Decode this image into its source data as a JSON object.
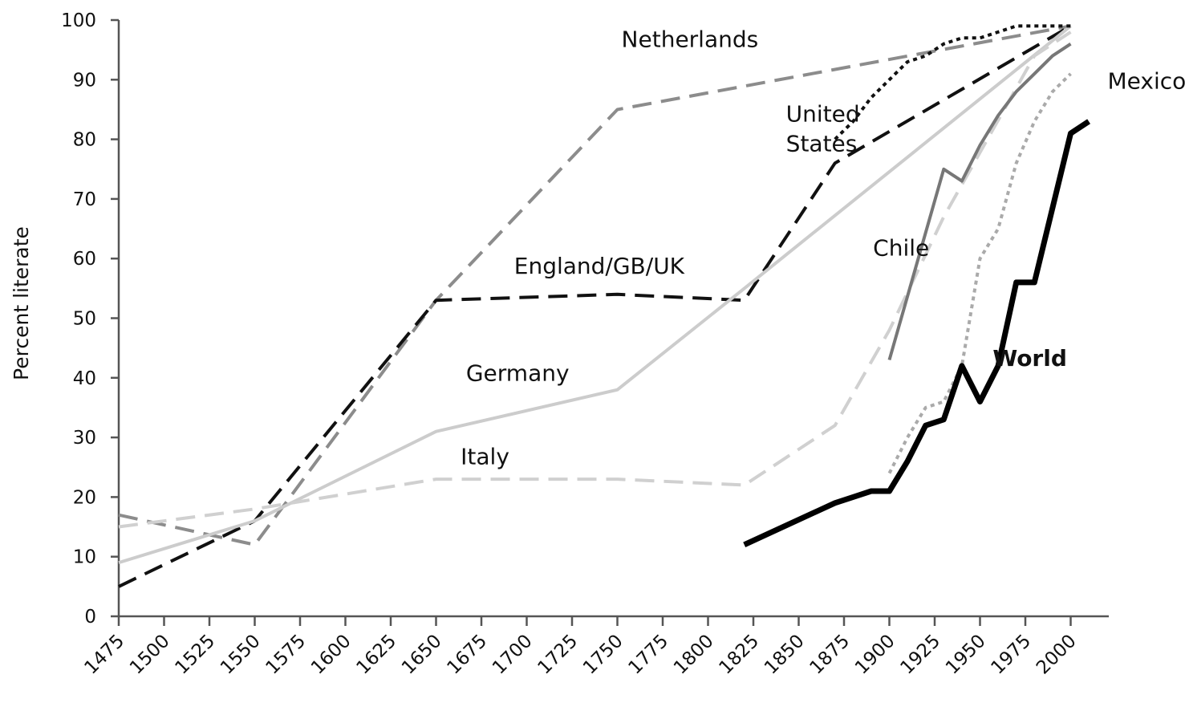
{
  "chart_data": {
    "type": "line",
    "title": "",
    "xlabel": "",
    "ylabel": "Percent literate",
    "xlim": [
      1475,
      2025
    ],
    "ylim": [
      0,
      100
    ],
    "x_ticks": [
      1475,
      1500,
      1525,
      1550,
      1575,
      1600,
      1625,
      1650,
      1675,
      1700,
      1725,
      1750,
      1775,
      1800,
      1825,
      1850,
      1875,
      1900,
      1925,
      1950,
      1975,
      2000
    ],
    "y_ticks": [
      0,
      10,
      20,
      30,
      40,
      50,
      60,
      70,
      80,
      90,
      100
    ],
    "grid": false,
    "legend": "none",
    "series": [
      {
        "name": "Netherlands",
        "color": "#8c8c8c",
        "dash": "long",
        "width": 4,
        "points": [
          [
            1475,
            17
          ],
          [
            1550,
            12
          ],
          [
            1650,
            53
          ],
          [
            1750,
            85
          ],
          [
            2000,
            99
          ]
        ]
      },
      {
        "name": "England/GB/UK",
        "color": "#111111",
        "dash": "long",
        "width": 4,
        "points": [
          [
            1475,
            5
          ],
          [
            1550,
            16
          ],
          [
            1650,
            53
          ],
          [
            1750,
            54
          ],
          [
            1820,
            53
          ],
          [
            1870,
            76
          ],
          [
            2000,
            99
          ]
        ]
      },
      {
        "name": "Germany",
        "color": "#cccccc",
        "dash": "solid",
        "width": 4,
        "points": [
          [
            1475,
            9
          ],
          [
            1550,
            16
          ],
          [
            1650,
            31
          ],
          [
            1750,
            38
          ],
          [
            1820,
            55
          ],
          [
            2000,
            99
          ]
        ]
      },
      {
        "name": "Italy",
        "color": "#d0d0d0",
        "dash": "long",
        "width": 4,
        "points": [
          [
            1475,
            15
          ],
          [
            1550,
            18
          ],
          [
            1650,
            23
          ],
          [
            1750,
            23
          ],
          [
            1820,
            22
          ],
          [
            1870,
            32
          ],
          [
            1900,
            48
          ],
          [
            1930,
            67
          ],
          [
            1980,
            94
          ],
          [
            2000,
            98
          ]
        ]
      },
      {
        "name": "United States",
        "color": "#111111",
        "dash": "dotted",
        "width": 4,
        "points": [
          [
            1870,
            80
          ],
          [
            1880,
            83
          ],
          [
            1890,
            87
          ],
          [
            1900,
            90
          ],
          [
            1910,
            93
          ],
          [
            1920,
            94
          ],
          [
            1930,
            96
          ],
          [
            1940,
            97
          ],
          [
            1950,
            97
          ],
          [
            1960,
            98
          ],
          [
            1970,
            99
          ],
          [
            1980,
            99
          ],
          [
            1990,
            99
          ],
          [
            2000,
            99
          ]
        ]
      },
      {
        "name": "Chile",
        "color": "#777777",
        "dash": "solid",
        "width": 4,
        "points": [
          [
            1900,
            43
          ],
          [
            1930,
            75
          ],
          [
            1940,
            73
          ],
          [
            1950,
            79
          ],
          [
            1960,
            84
          ],
          [
            1970,
            88
          ],
          [
            1980,
            91
          ],
          [
            1990,
            94
          ],
          [
            2000,
            96
          ]
        ]
      },
      {
        "name": "Mexico",
        "color": "#aaaaaa",
        "dash": "dotted",
        "width": 4,
        "points": [
          [
            1900,
            24
          ],
          [
            1910,
            30
          ],
          [
            1920,
            35
          ],
          [
            1930,
            36
          ],
          [
            1940,
            42
          ],
          [
            1950,
            60
          ],
          [
            1960,
            65
          ],
          [
            1970,
            76
          ],
          [
            1980,
            83
          ],
          [
            1990,
            88
          ],
          [
            2000,
            91
          ]
        ]
      },
      {
        "name": "World",
        "color": "#000000",
        "dash": "solid",
        "width": 7,
        "points": [
          [
            1820,
            12
          ],
          [
            1870,
            19
          ],
          [
            1880,
            20
          ],
          [
            1890,
            21
          ],
          [
            1900,
            21
          ],
          [
            1910,
            26
          ],
          [
            1920,
            32
          ],
          [
            1930,
            33
          ],
          [
            1940,
            42
          ],
          [
            1950,
            36
          ],
          [
            1960,
            42
          ],
          [
            1970,
            56
          ],
          [
            1980,
            56
          ],
          [
            2000,
            81
          ],
          [
            2010,
            83
          ]
        ]
      }
    ],
    "labels": [
      {
        "text": "Netherlands",
        "x": 1790,
        "y": 95.5,
        "anchor": "middle",
        "bold": false
      },
      {
        "text": "United",
        "x": 1843,
        "y": 83,
        "anchor": "start",
        "bold": false
      },
      {
        "text": "States",
        "x": 1843,
        "y": 78,
        "anchor": "start",
        "bold": false
      },
      {
        "text": "England/GB/UK",
        "x": 1740,
        "y": 57.5,
        "anchor": "middle",
        "bold": false
      },
      {
        "text": "Germany",
        "x": 1695,
        "y": 39.5,
        "anchor": "middle",
        "bold": false
      },
      {
        "text": "Italy",
        "x": 1677,
        "y": 25.5,
        "anchor": "middle",
        "bold": false
      },
      {
        "text": "Chile",
        "x": 1891,
        "y": 60.5,
        "anchor": "start",
        "bold": false
      },
      {
        "text": "Mexico",
        "x": 2042,
        "y": 88.5,
        "anchor": "middle",
        "bold": false
      },
      {
        "text": "World",
        "x": 1957,
        "y": 42,
        "anchor": "start",
        "bold": true
      }
    ]
  }
}
